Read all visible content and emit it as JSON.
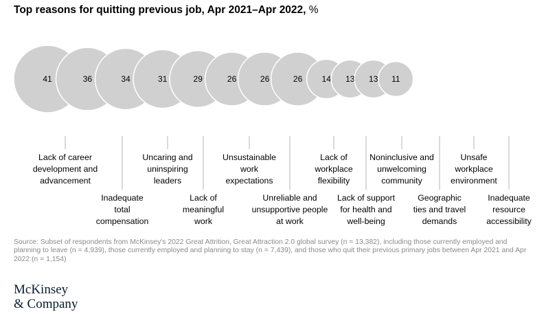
{
  "title": {
    "main": "Top reasons for quitting previous job, Apr 2021–Apr 2022,",
    "unit": "%"
  },
  "chart_data": {
    "type": "bubble",
    "title": "Top reasons for quitting previous job, Apr 2021–Apr 2022, %",
    "categories": [
      "Lack of career development and advancement",
      "Inadequate total compensation",
      "Uncaring and uninspiring leaders",
      "Lack of meaningful work",
      "Unsustainable work expectations",
      "Unreliable and unsupportive people at work",
      "Lack of workplace flexibility",
      "Lack of support for health and well-being",
      "Noninclusive and unwelcoming community",
      "Geographic ties and travel demands",
      "Unsafe workplace environment",
      "Inadequate resource accessibility"
    ],
    "values": [
      41,
      36,
      34,
      31,
      29,
      26,
      26,
      26,
      14,
      13,
      13,
      11
    ],
    "label_lines": [
      [
        "Lack of career",
        "development and",
        "advancement"
      ],
      [
        "Inadequate",
        "total",
        "compensation"
      ],
      [
        "Uncaring and",
        "uninspiring",
        "leaders"
      ],
      [
        "Lack of",
        "meaningful",
        "work"
      ],
      [
        "Unsustainable",
        "work",
        "expectations"
      ],
      [
        "Unreliable and",
        "unsupportive people",
        "at work"
      ],
      [
        "Lack of",
        "workplace",
        "flexibility"
      ],
      [
        "Lack of support",
        "for health and",
        "well-being"
      ],
      [
        "Noninclusive and",
        "unwelcoming",
        "community"
      ],
      [
        "Geographic",
        "ties and travel",
        "demands"
      ],
      [
        "Unsafe",
        "workplace",
        "environment"
      ],
      [
        "Inadequate",
        "resource",
        "accessibility"
      ]
    ],
    "label_rows": [
      "top",
      "bottom",
      "top",
      "bottom",
      "top",
      "bottom",
      "top",
      "bottom",
      "top",
      "bottom",
      "top",
      "bottom"
    ]
  },
  "colors": {
    "bubble_fill": "#d0d0d0",
    "bubble_stroke": "#ffffff",
    "leader_line": "#b4b4b4",
    "source_text": "#8a8a8a",
    "brand_text": "#051c2c"
  },
  "source": "Source: Subset of respondents from McKinsey's 2022 Great Attrition, Great Attraction 2.0 global survey (n = 13,382), including those currently employed and planning to leave (n = 4,939), those currently employed and planning to stay (n = 7,439), and those who quit their previous primary jobs between Apr 2021 and Apr 2022 (n = 1,154)",
  "brand": {
    "line1": "McKinsey",
    "line2": "& Company"
  }
}
